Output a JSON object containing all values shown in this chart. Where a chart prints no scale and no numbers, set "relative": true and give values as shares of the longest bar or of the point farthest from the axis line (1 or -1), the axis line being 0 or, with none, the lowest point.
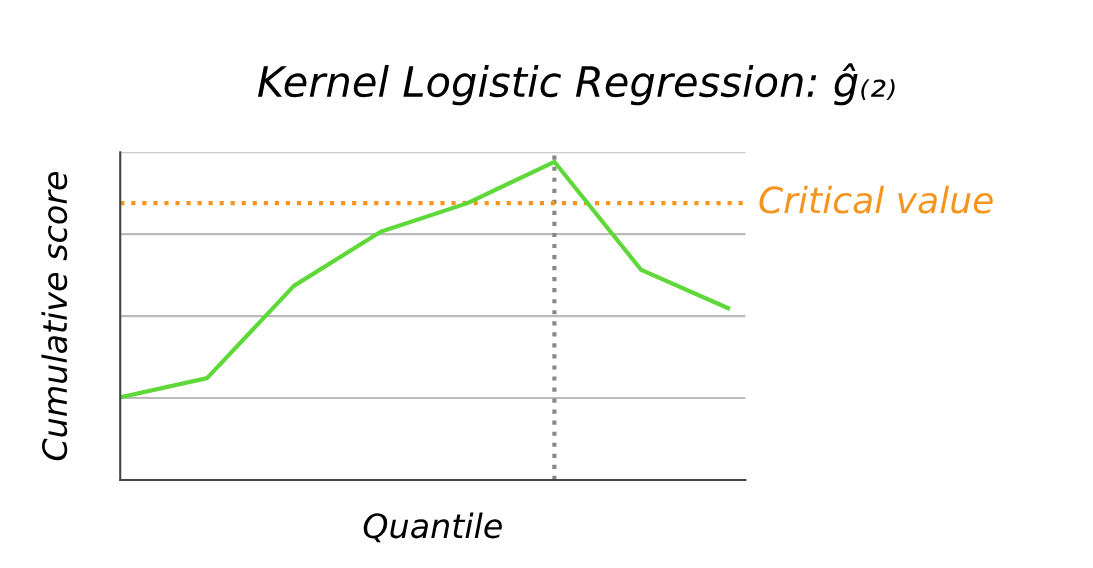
{
  "chart_data": {
    "type": "line",
    "title": "Kernel Logistic Regression: ĝ₍₂₎",
    "xlabel": "Quantile",
    "ylabel": "Cumulative score",
    "categories": [
      null,
      null,
      null,
      null,
      null,
      null,
      null,
      null
    ],
    "relative": true,
    "series": [
      {
        "color": "#5fd93a",
        "values": [
          0.26,
          0.32,
          0.61,
          0.78,
          0.87,
          1,
          0.66,
          0.54
        ]
      }
    ],
    "ref_lines": [
      {
        "axis": "y",
        "value": 0.87,
        "label": "Critical value",
        "color": "#f7941d",
        "line_style": "dotted"
      }
    ],
    "grid": "y",
    "marker": "none",
    "line_style": "solid",
    "legend": false
  }
}
